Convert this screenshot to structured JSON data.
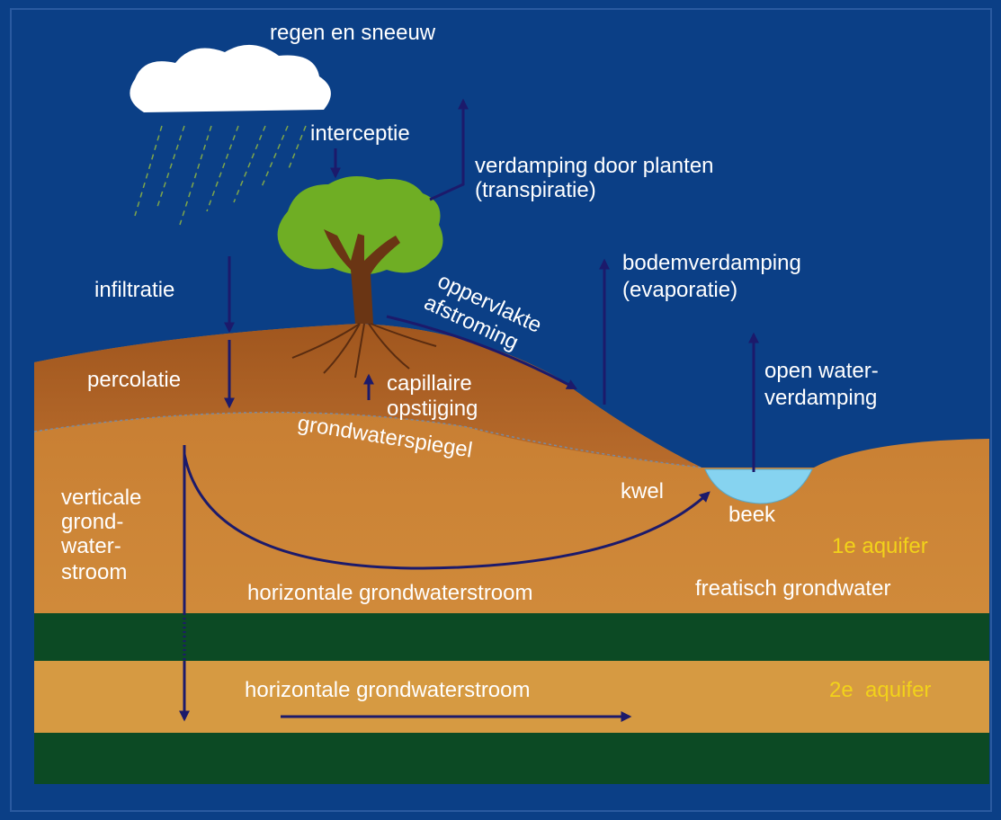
{
  "labels": {
    "precipitation": [
      "regen en sneeuw"
    ],
    "interception": [
      "interceptie"
    ],
    "transpiration": [
      "verdamping door planten",
      "(transpiratie)"
    ],
    "evaporation": [
      "bodemverdamping",
      "(evaporatie)"
    ],
    "infiltration": [
      "infiltratie"
    ],
    "runoff": [
      "oppervlakte",
      "afstroming"
    ],
    "percolation": [
      "percolatie"
    ],
    "capillary": [
      "capillaire",
      "opstijging"
    ],
    "open_water": [
      "open water-",
      "verdamping"
    ],
    "water_table": [
      "grondwaterspiegel"
    ],
    "seepage": [
      "kwel"
    ],
    "stream": [
      "beek"
    ],
    "vertical_flow": [
      "verticale",
      "grond-",
      "water-",
      "stroom"
    ],
    "aquifer_1": [
      "1e aquifer"
    ],
    "horizontal_flow_1": [
      "horizontale grondwaterstroom"
    ],
    "phreatic": [
      "freatisch grondwater"
    ],
    "aquifer_2": [
      "2e  aquifer"
    ],
    "horizontal_flow_2": [
      "horizontale grondwaterstroom"
    ]
  }
}
